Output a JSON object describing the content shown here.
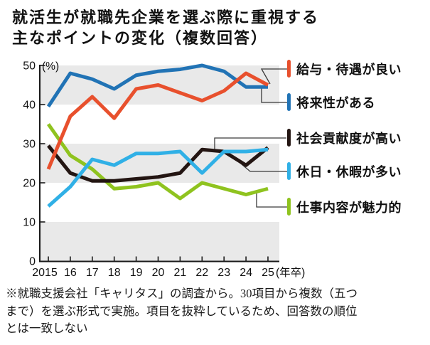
{
  "title": {
    "line1": "就活生が就職先企業を選ぶ際に重視する",
    "line2": "主なポイントの変化（複数回答）"
  },
  "chart_data": {
    "type": "line",
    "y_unit": "(%)",
    "x_suffix": "(年卒)",
    "categories": [
      "2015",
      "16",
      "17",
      "18",
      "19",
      "20",
      "21",
      "22",
      "23",
      "24",
      "25"
    ],
    "y_ticks": [
      0,
      10,
      20,
      30,
      40,
      50
    ],
    "ylim": [
      0,
      50
    ],
    "grid_bands": [
      [
        40,
        50
      ],
      [
        20,
        30
      ],
      [
        0,
        10
      ]
    ],
    "band_color": "#e9e9e9",
    "axis_color": "#1a1a1a",
    "connector_color": "#3a3a3a",
    "legend_position": "right",
    "series": [
      {
        "name": "給与・待遇が良い",
        "color": "#e8502d",
        "values": [
          23.5,
          37,
          42,
          36.5,
          44,
          45,
          43,
          41,
          43.5,
          48,
          45
        ]
      },
      {
        "name": "将来性がある",
        "color": "#2173b5",
        "values": [
          39.5,
          48,
          46.5,
          44,
          47.5,
          48.5,
          49,
          50,
          48.5,
          44.5,
          44.5
        ]
      },
      {
        "name": "社会貢献度が高い",
        "color": "#231512",
        "values": [
          29.5,
          22.5,
          20.5,
          20.5,
          21,
          21.5,
          22.5,
          28.5,
          28,
          24.5,
          29
        ]
      },
      {
        "name": "休日・休暇が多い",
        "color": "#30b0e6",
        "values": [
          14,
          19,
          26,
          24.5,
          27.5,
          27.5,
          28,
          22.5,
          28,
          28,
          28.5
        ]
      },
      {
        "name": "仕事内容が魅力的",
        "color": "#8fc31f",
        "values": [
          35,
          27,
          23.5,
          18.5,
          19,
          20,
          16,
          20,
          18.5,
          17,
          18.5
        ]
      }
    ]
  },
  "footnote": {
    "text": "※就職支援会社「キャリタス」の調査から。30項目から複数（五つまで）を選ぶ形式で実施。項目を抜粋しているため、回答数の順位とは一致しない"
  }
}
